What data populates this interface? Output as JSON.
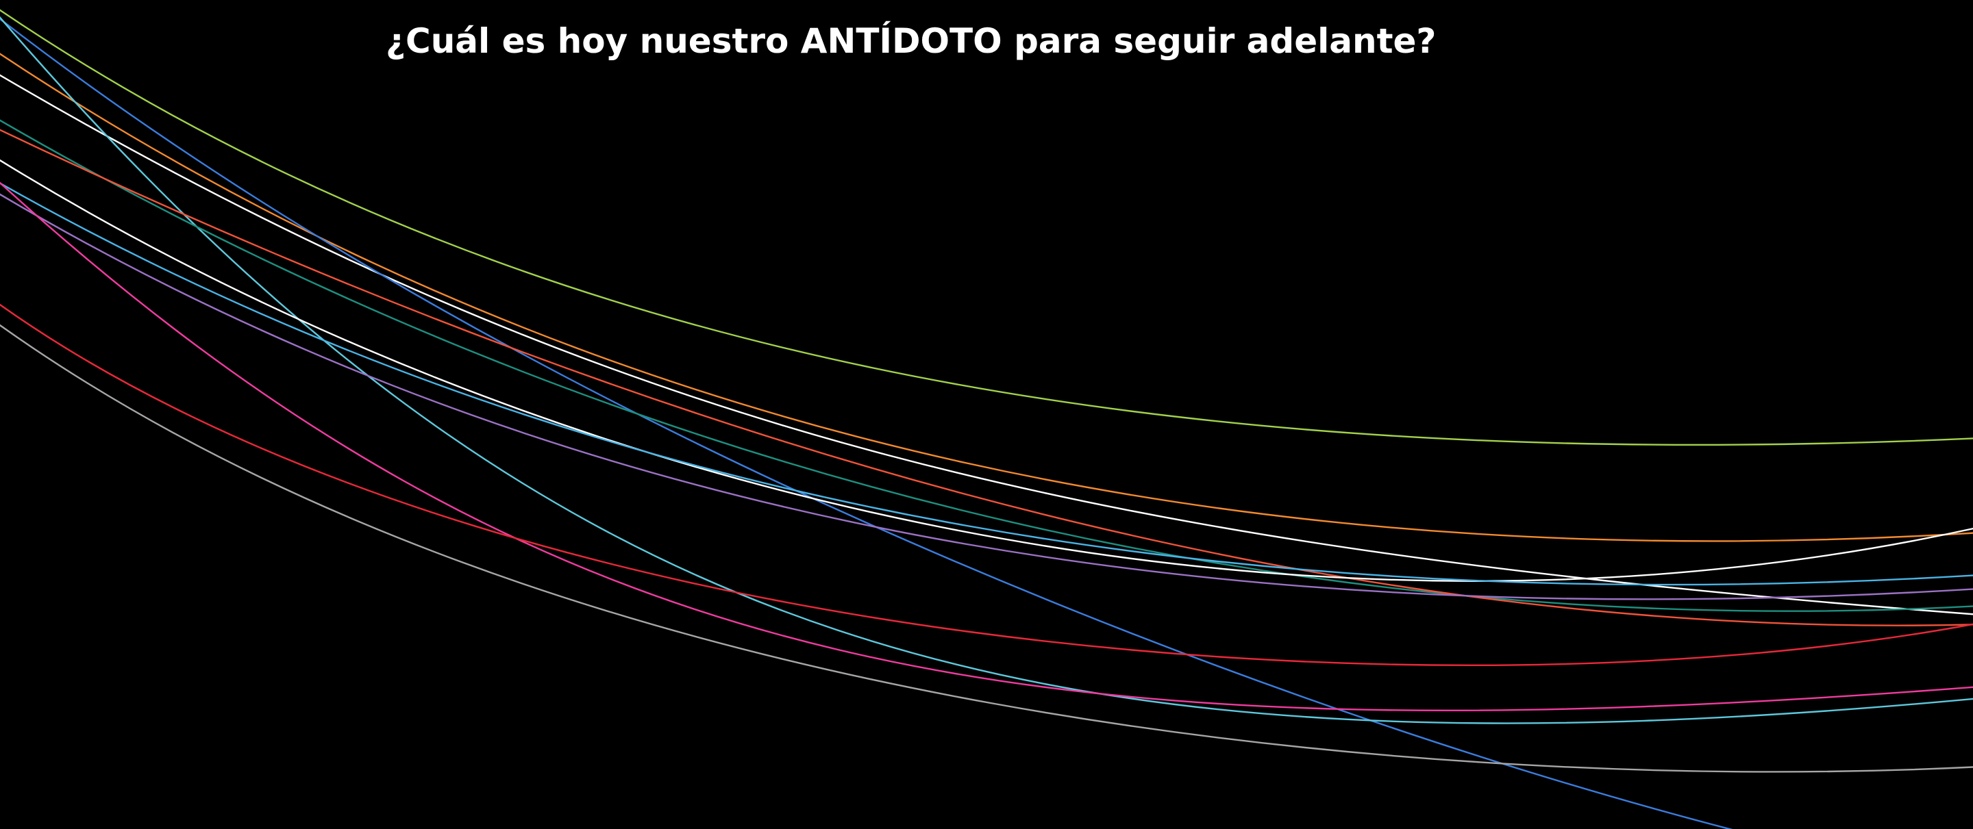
{
  "slide": {
    "title": "¿Cuál es hoy nuestro ANTÍDOTO para seguir adelante?",
    "background": "#000000"
  },
  "decor": {
    "line_colors": [
      "#a3d14c",
      "#f28a30",
      "#ffffff",
      "#3b7ddd",
      "#5ec8dc",
      "#1e8f80",
      "#f0543a",
      "#ffffff",
      "#4ab4e6",
      "#9b72c4",
      "#f03ca0",
      "#e8293a",
      "#a6a6a6"
    ]
  }
}
